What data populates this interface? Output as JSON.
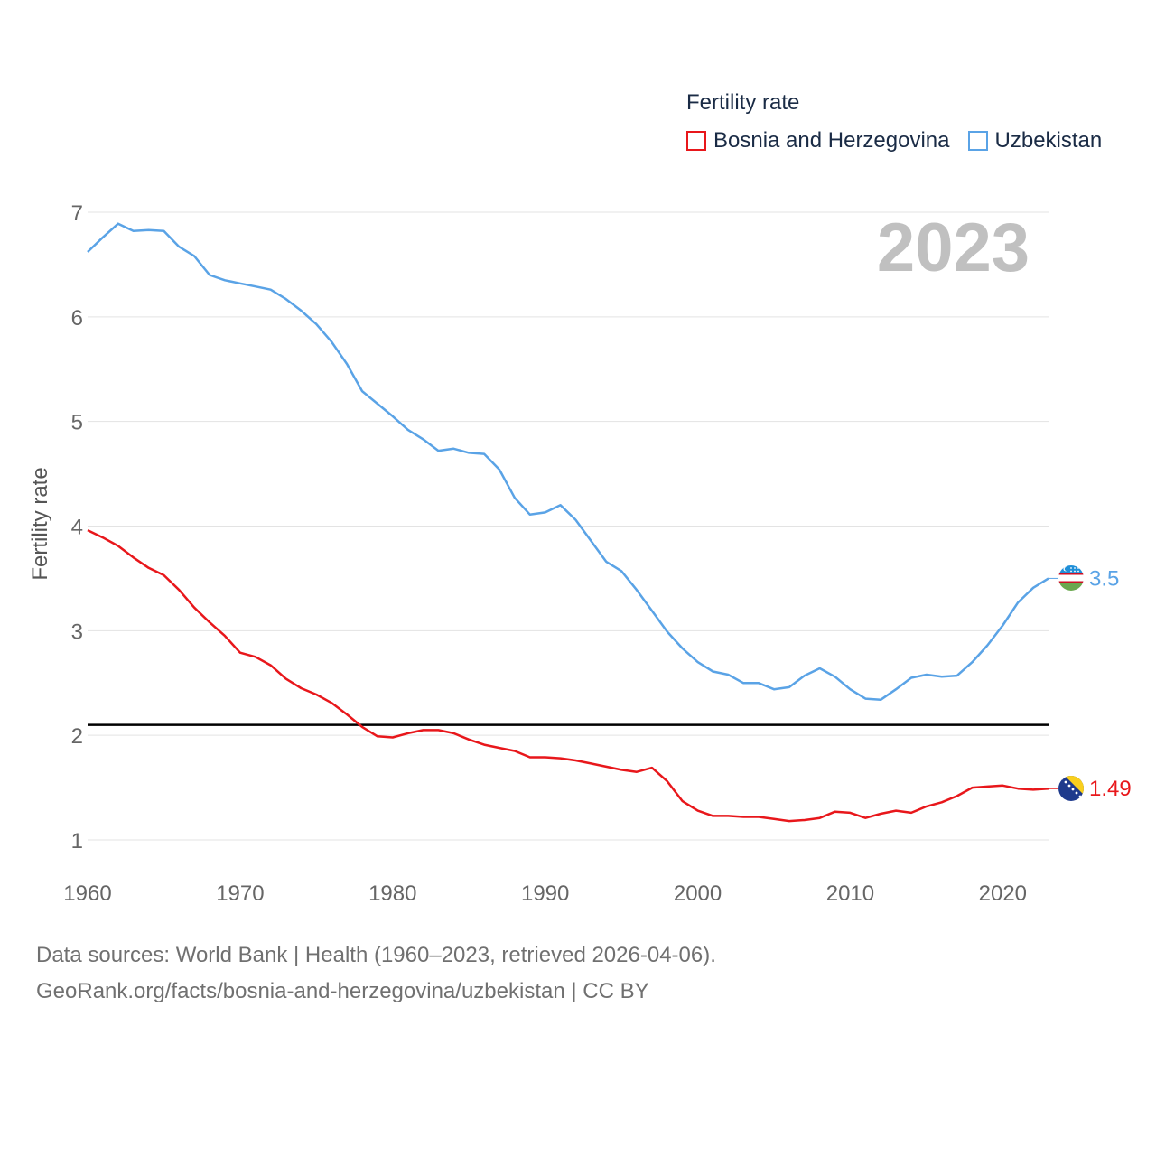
{
  "legend": {
    "title": "Fertility rate",
    "items": [
      {
        "label": "Bosnia and Herzegovina",
        "color": "#e8171b"
      },
      {
        "label": "Uzbekistan",
        "color": "#5aa3e6"
      }
    ]
  },
  "footer": {
    "line1": "Data sources: World Bank | Health (1960–2023, retrieved 2026-04-06).",
    "line2": "GeoRank.org/facts/bosnia-and-herzegovina/uzbekistan | CC BY"
  },
  "chart_data": {
    "type": "line",
    "year_label": "2023",
    "ylabel": "Fertility rate",
    "xlim": [
      1960,
      2023
    ],
    "ylim": [
      0.7,
      7.3
    ],
    "yticks": [
      1,
      2,
      3,
      4,
      5,
      6,
      7
    ],
    "xticks": [
      1960,
      1970,
      1980,
      1990,
      2000,
      2010,
      2020
    ],
    "reference_line": {
      "y": 2.1,
      "color": "#000000"
    },
    "x": [
      1960,
      1961,
      1962,
      1963,
      1964,
      1965,
      1966,
      1967,
      1968,
      1969,
      1970,
      1971,
      1972,
      1973,
      1974,
      1975,
      1976,
      1977,
      1978,
      1979,
      1980,
      1981,
      1982,
      1983,
      1984,
      1985,
      1986,
      1987,
      1988,
      1989,
      1990,
      1991,
      1992,
      1993,
      1994,
      1995,
      1996,
      1997,
      1998,
      1999,
      2000,
      2001,
      2002,
      2003,
      2004,
      2005,
      2006,
      2007,
      2008,
      2009,
      2010,
      2011,
      2012,
      2013,
      2014,
      2015,
      2016,
      2017,
      2018,
      2019,
      2020,
      2021,
      2022,
      2023
    ],
    "series": [
      {
        "name": "Bosnia and Herzegovina",
        "color": "#e8171b",
        "end_label": "1.49",
        "values": [
          3.96,
          3.89,
          3.81,
          3.7,
          3.6,
          3.53,
          3.39,
          3.22,
          3.08,
          2.95,
          2.79,
          2.75,
          2.67,
          2.54,
          2.45,
          2.39,
          2.31,
          2.2,
          2.08,
          1.99,
          1.98,
          2.02,
          2.05,
          2.05,
          2.02,
          1.96,
          1.91,
          1.88,
          1.85,
          1.79,
          1.79,
          1.78,
          1.76,
          1.73,
          1.7,
          1.67,
          1.65,
          1.69,
          1.56,
          1.37,
          1.28,
          1.23,
          1.23,
          1.22,
          1.22,
          1.2,
          1.18,
          1.19,
          1.21,
          1.27,
          1.26,
          1.21,
          1.25,
          1.28,
          1.26,
          1.32,
          1.36,
          1.42,
          1.5,
          1.51,
          1.52,
          1.49,
          1.48,
          1.49
        ]
      },
      {
        "name": "Uzbekistan",
        "color": "#5aa3e6",
        "end_label": "3.5",
        "values": [
          6.62,
          6.76,
          6.89,
          6.82,
          6.83,
          6.82,
          6.67,
          6.58,
          6.4,
          6.35,
          6.32,
          6.29,
          6.26,
          6.17,
          6.06,
          5.93,
          5.76,
          5.55,
          5.29,
          5.17,
          5.05,
          4.92,
          4.83,
          4.72,
          4.74,
          4.7,
          4.69,
          4.54,
          4.27,
          4.11,
          4.13,
          4.2,
          4.06,
          3.86,
          3.66,
          3.57,
          3.39,
          3.19,
          2.99,
          2.83,
          2.7,
          2.61,
          2.58,
          2.5,
          2.5,
          2.44,
          2.46,
          2.57,
          2.64,
          2.56,
          2.44,
          2.35,
          2.34,
          2.44,
          2.55,
          2.58,
          2.56,
          2.57,
          2.7,
          2.86,
          3.05,
          3.27,
          3.41,
          3.5
        ]
      }
    ]
  }
}
